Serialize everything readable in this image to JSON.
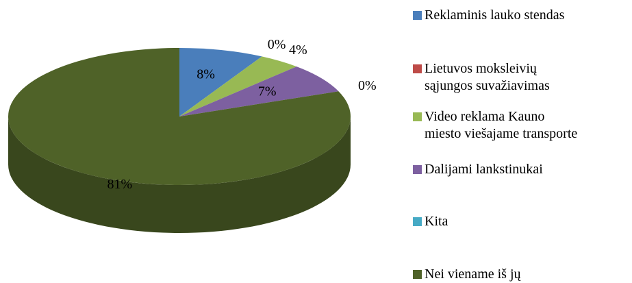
{
  "chart_data": {
    "type": "pie",
    "categories": [
      "Reklaminis lauko stendas",
      "Lietuvos moksleivių\nsąjungos suvažiavimas",
      "Video reklama Kauno\nmiesto viešajame transporte",
      "Dalijami lankstinukai",
      "Kita",
      "Nei viename iš jų"
    ],
    "values": [
      8,
      0,
      4,
      7,
      0,
      81
    ],
    "value_labels": [
      "8%",
      "0%",
      "4%",
      "7%",
      "0%",
      "81%"
    ],
    "colors": [
      "#4a7ebb",
      "#be4b48",
      "#98b954",
      "#7d60a0",
      "#46aac5",
      "#4f6228"
    ],
    "legend": "right"
  }
}
